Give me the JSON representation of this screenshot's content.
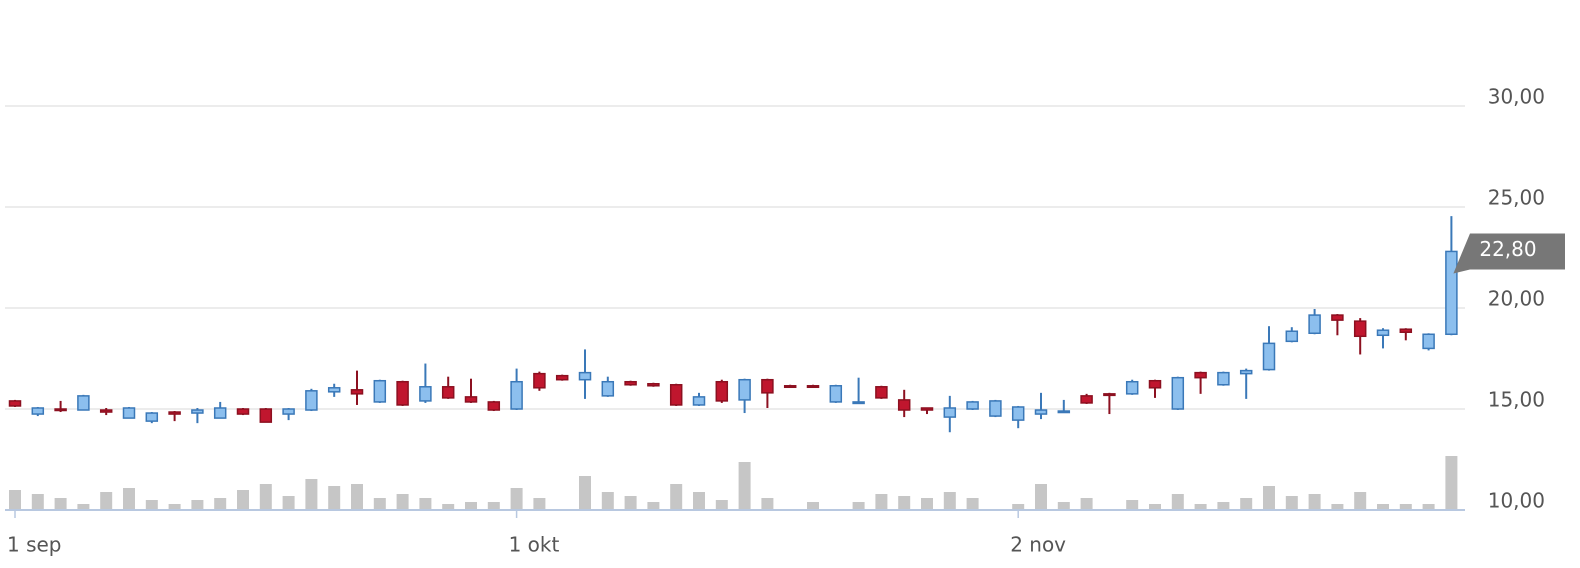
{
  "chart_data": {
    "type": "candlestick",
    "categories": [
      "1 sep",
      null,
      null,
      null,
      null,
      null,
      null,
      null,
      null,
      null,
      null,
      null,
      null,
      null,
      null,
      null,
      null,
      null,
      null,
      null,
      null,
      null,
      "1 okt",
      null,
      null,
      null,
      null,
      null,
      null,
      null,
      null,
      null,
      null,
      null,
      null,
      null,
      null,
      null,
      null,
      null,
      null,
      null,
      null,
      null,
      "2 nov",
      null,
      null,
      null,
      null,
      null,
      null,
      null,
      null,
      null,
      null,
      null,
      null,
      null,
      null,
      null,
      null,
      null,
      null,
      null
    ],
    "open": [
      15.4,
      14.75,
      15.0,
      14.95,
      14.95,
      14.55,
      14.4,
      14.85,
      14.8,
      14.55,
      15.0,
      15.0,
      14.75,
      14.95,
      15.85,
      15.95,
      15.35,
      16.35,
      15.4,
      16.1,
      15.6,
      15.35,
      15.0,
      16.75,
      16.65,
      16.45,
      15.65,
      16.35,
      16.25,
      16.2,
      15.2,
      16.35,
      15.45,
      16.45,
      16.15,
      16.15,
      15.35,
      15.3,
      16.1,
      15.45,
      15.05,
      14.6,
      15.0,
      14.65,
      14.45,
      14.75,
      14.85,
      15.65,
      15.75,
      15.75,
      16.4,
      15.0,
      16.8,
      16.2,
      16.75,
      16.95,
      18.35,
      18.75,
      19.65,
      19.35,
      18.65,
      18.95,
      18.0,
      18.7
    ],
    "high": [
      15.45,
      15.1,
      15.4,
      15.7,
      15.05,
      15.1,
      14.85,
      14.9,
      15.05,
      15.35,
      15.05,
      15.05,
      15.05,
      16.0,
      16.25,
      16.9,
      16.45,
      16.4,
      17.25,
      16.6,
      16.5,
      15.4,
      17.0,
      16.85,
      16.7,
      17.95,
      16.6,
      16.4,
      16.3,
      16.25,
      15.8,
      16.45,
      16.5,
      16.5,
      16.2,
      16.2,
      16.2,
      16.55,
      16.15,
      15.95,
      15.05,
      15.65,
      15.4,
      15.45,
      15.15,
      15.8,
      15.45,
      15.75,
      15.8,
      16.45,
      16.45,
      16.6,
      16.85,
      16.85,
      17.0,
      19.1,
      19.05,
      19.95,
      19.7,
      19.5,
      19.0,
      19.0,
      18.75,
      24.55
    ],
    "low": [
      15.1,
      14.65,
      14.85,
      14.95,
      14.7,
      14.55,
      14.3,
      14.4,
      14.3,
      14.55,
      14.7,
      14.35,
      14.45,
      14.9,
      15.6,
      15.2,
      15.3,
      15.15,
      15.3,
      15.5,
      15.3,
      14.9,
      14.95,
      15.9,
      16.4,
      15.5,
      15.6,
      16.15,
      16.1,
      15.15,
      15.15,
      15.3,
      14.8,
      15.05,
      16.05,
      16.05,
      15.3,
      15.3,
      15.5,
      14.6,
      14.75,
      13.85,
      14.95,
      14.6,
      14.05,
      14.5,
      14.85,
      15.25,
      14.75,
      15.7,
      15.55,
      14.95,
      15.75,
      16.15,
      15.5,
      16.9,
      18.3,
      18.7,
      18.65,
      17.7,
      18.0,
      18.4,
      17.9,
      18.65
    ],
    "close": [
      15.15,
      15.05,
      14.95,
      15.65,
      14.85,
      15.05,
      14.8,
      14.75,
      14.95,
      15.05,
      14.75,
      14.35,
      15.0,
      15.9,
      16.05,
      15.75,
      16.4,
      15.2,
      16.1,
      15.55,
      15.35,
      14.95,
      16.35,
      16.05,
      16.45,
      16.8,
      16.35,
      16.2,
      16.15,
      15.2,
      15.6,
      15.4,
      16.45,
      15.8,
      16.1,
      16.1,
      16.15,
      15.35,
      15.55,
      14.95,
      14.95,
      15.05,
      15.35,
      15.4,
      15.1,
      14.95,
      14.9,
      15.3,
      15.7,
      16.35,
      16.05,
      16.55,
      16.55,
      16.8,
      16.9,
      18.25,
      18.85,
      19.65,
      19.4,
      18.6,
      18.9,
      18.8,
      18.7,
      22.8
    ],
    "volume": [
      20,
      16,
      12,
      6,
      18,
      22,
      10,
      6,
      10,
      12,
      20,
      26,
      14,
      31,
      24,
      26,
      12,
      16,
      12,
      6,
      8,
      8,
      22,
      12,
      0,
      34,
      18,
      14,
      8,
      26,
      18,
      10,
      48,
      12,
      0,
      8,
      0,
      8,
      16,
      14,
      12,
      18,
      12,
      0,
      6,
      26,
      8,
      12,
      0,
      10,
      6,
      16,
      6,
      8,
      12,
      24,
      14,
      16,
      6,
      18,
      6,
      6,
      6,
      54
    ],
    "up_color": "#8cbfee",
    "up_edge": "#3a78b8",
    "down_color": "#c0162e",
    "down_edge": "#8c1020",
    "volume_color": "#c6c6c6",
    "ylim": [
      10,
      35
    ],
    "yticks": [
      {
        "value": 10,
        "label": "10,00"
      },
      {
        "value": 15,
        "label": "15,00"
      },
      {
        "value": 20,
        "label": "20,00"
      },
      {
        "value": 25,
        "label": "25,00"
      },
      {
        "value": 30,
        "label": "30,00"
      }
    ],
    "grid": true,
    "last_price": {
      "value": 22.8,
      "label": "22,80"
    }
  }
}
